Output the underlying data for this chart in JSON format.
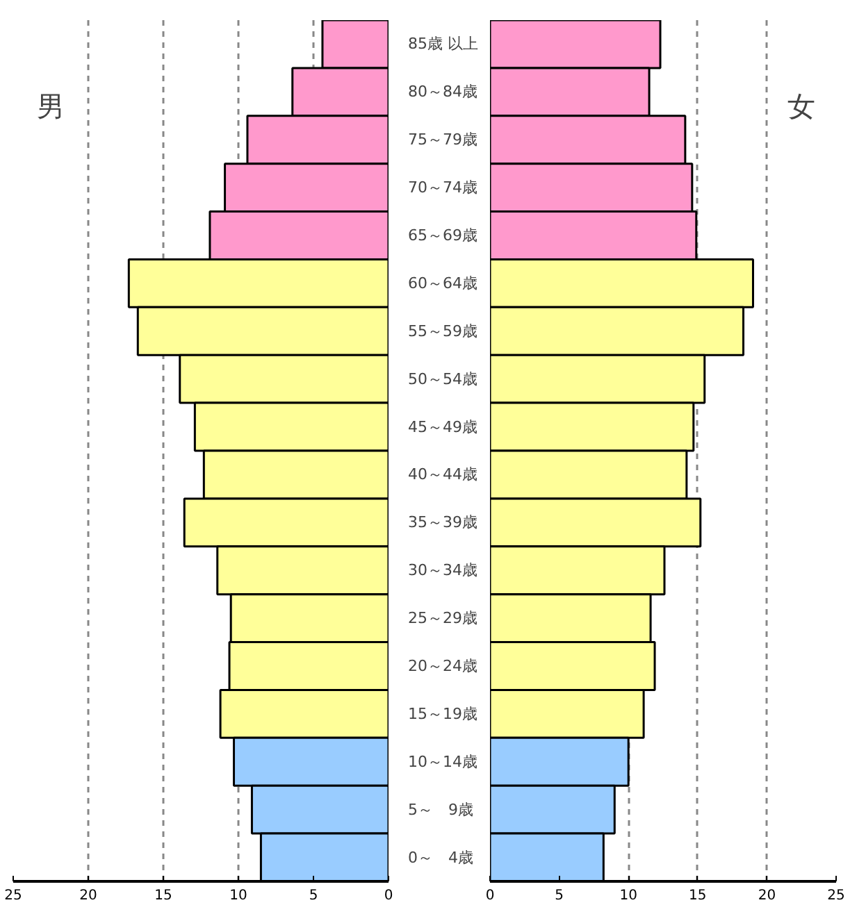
{
  "chart_data": [
    {
      "type": "bar",
      "orientation": "horizontal",
      "title": "男",
      "categories": [
        "85歳 以上",
        "80～84歳",
        "75～79歳",
        "70～74歳",
        "65～69歳",
        "60～64歳",
        "55～59歳",
        "50～54歳",
        "45～49歳",
        "40～44歳",
        "35～39歳",
        "30～34歳",
        "25～29歳",
        "20～24歳",
        "15～19歳",
        "10～14歳",
        "5～　9歳",
        "0～　4歳"
      ],
      "values": [
        4.4,
        6.4,
        9.4,
        10.9,
        11.9,
        17.3,
        16.7,
        13.9,
        12.9,
        12.3,
        13.6,
        11.4,
        10.5,
        10.6,
        11.2,
        10.3,
        9.1,
        8.5
      ],
      "colors": [
        "#ff99cc",
        "#ff99cc",
        "#ff99cc",
        "#ff99cc",
        "#ff99cc",
        "#ffff99",
        "#ffff99",
        "#ffff99",
        "#ffff99",
        "#ffff99",
        "#ffff99",
        "#ffff99",
        "#ffff99",
        "#ffff99",
        "#ffff99",
        "#99ccff",
        "#99ccff",
        "#99ccff"
      ],
      "xlim": [
        25,
        0
      ],
      "xticks": [
        25,
        20,
        15,
        10,
        5,
        0
      ],
      "grid": "x"
    },
    {
      "type": "bar",
      "orientation": "horizontal",
      "title": "女",
      "values": [
        12.3,
        11.5,
        14.1,
        14.6,
        14.9,
        19.0,
        18.3,
        15.5,
        14.7,
        14.2,
        15.2,
        12.6,
        11.6,
        11.9,
        11.1,
        10.0,
        9.0,
        8.2
      ],
      "colors": [
        "#ff99cc",
        "#ff99cc",
        "#ff99cc",
        "#ff99cc",
        "#ff99cc",
        "#ffff99",
        "#ffff99",
        "#ffff99",
        "#ffff99",
        "#ffff99",
        "#ffff99",
        "#ffff99",
        "#ffff99",
        "#ffff99",
        "#ffff99",
        "#99ccff",
        "#99ccff",
        "#99ccff"
      ],
      "xlim": [
        0,
        25
      ],
      "xticks": [
        0,
        5,
        10,
        15,
        20,
        25
      ],
      "grid": "x",
      "tick_labels": "x"
    }
  ]
}
